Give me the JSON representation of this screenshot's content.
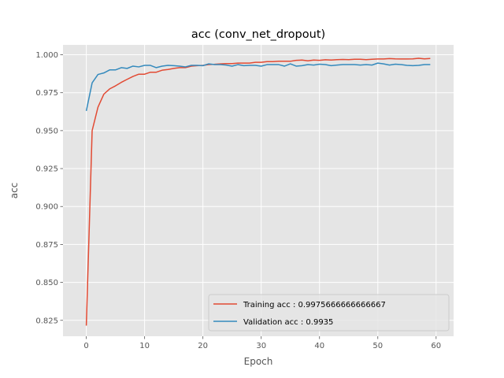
{
  "chart_data": {
    "type": "line",
    "title": "acc (conv_net_dropout)",
    "xlabel": "Epoch",
    "ylabel": "acc",
    "xlim": [
      -4,
      63
    ],
    "ylim": [
      0.8145,
      1.0065
    ],
    "xticks": [
      0,
      10,
      20,
      30,
      40,
      50,
      60
    ],
    "yticks": [
      0.825,
      0.85,
      0.875,
      0.9,
      0.925,
      0.95,
      0.975,
      1.0
    ],
    "grid": true,
    "legend_position": "lower-right",
    "series": [
      {
        "name": "Training acc : 0.9975666666666667",
        "color": "#e24a33",
        "x": [
          0,
          1,
          2,
          3,
          4,
          5,
          6,
          7,
          8,
          9,
          10,
          11,
          12,
          13,
          14,
          15,
          16,
          17,
          18,
          19,
          20,
          21,
          22,
          23,
          24,
          25,
          26,
          27,
          28,
          29,
          30,
          31,
          32,
          33,
          34,
          35,
          36,
          37,
          38,
          39,
          40,
          41,
          42,
          43,
          44,
          45,
          46,
          47,
          48,
          49,
          50,
          51,
          52,
          53,
          54,
          55,
          56,
          57,
          58,
          59
        ],
        "values": [
          0.8215,
          0.95,
          0.9655,
          0.974,
          0.9775,
          0.9795,
          0.9818,
          0.9838,
          0.9857,
          0.9872,
          0.9872,
          0.9885,
          0.9885,
          0.9898,
          0.9903,
          0.991,
          0.9915,
          0.9915,
          0.9925,
          0.9928,
          0.993,
          0.9935,
          0.9937,
          0.994,
          0.9942,
          0.9942,
          0.9945,
          0.9945,
          0.9945,
          0.995,
          0.995,
          0.9955,
          0.9955,
          0.9957,
          0.9957,
          0.9957,
          0.9963,
          0.9965,
          0.996,
          0.9965,
          0.9963,
          0.9967,
          0.9965,
          0.9968,
          0.9969,
          0.9968,
          0.997,
          0.997,
          0.9968,
          0.997,
          0.9972,
          0.9972,
          0.9975,
          0.9973,
          0.9972,
          0.9972,
          0.9973,
          0.9977,
          0.9973,
          0.99757
        ]
      },
      {
        "name": "Validation acc : 0.9935",
        "color": "#348abd",
        "x": [
          0,
          1,
          2,
          3,
          4,
          5,
          6,
          7,
          8,
          9,
          10,
          11,
          12,
          13,
          14,
          15,
          16,
          17,
          18,
          19,
          20,
          21,
          22,
          23,
          24,
          25,
          26,
          27,
          28,
          29,
          30,
          31,
          32,
          33,
          34,
          35,
          36,
          37,
          38,
          39,
          40,
          41,
          42,
          43,
          44,
          45,
          46,
          47,
          48,
          49,
          50,
          51,
          52,
          53,
          54,
          55,
          56,
          57,
          58,
          59
        ],
        "values": [
          0.963,
          0.9815,
          0.987,
          0.988,
          0.99,
          0.99,
          0.9915,
          0.991,
          0.9925,
          0.992,
          0.993,
          0.993,
          0.9915,
          0.9925,
          0.993,
          0.9928,
          0.9925,
          0.992,
          0.993,
          0.993,
          0.9928,
          0.994,
          0.9935,
          0.9935,
          0.9932,
          0.9925,
          0.9935,
          0.9928,
          0.993,
          0.993,
          0.9925,
          0.9935,
          0.9935,
          0.9935,
          0.9925,
          0.994,
          0.9925,
          0.9928,
          0.9935,
          0.9932,
          0.9938,
          0.9935,
          0.9928,
          0.9932,
          0.9935,
          0.9935,
          0.9935,
          0.9932,
          0.9935,
          0.9932,
          0.9945,
          0.994,
          0.9932,
          0.9938,
          0.9935,
          0.993,
          0.9928,
          0.993,
          0.9935,
          0.9935
        ]
      }
    ]
  }
}
